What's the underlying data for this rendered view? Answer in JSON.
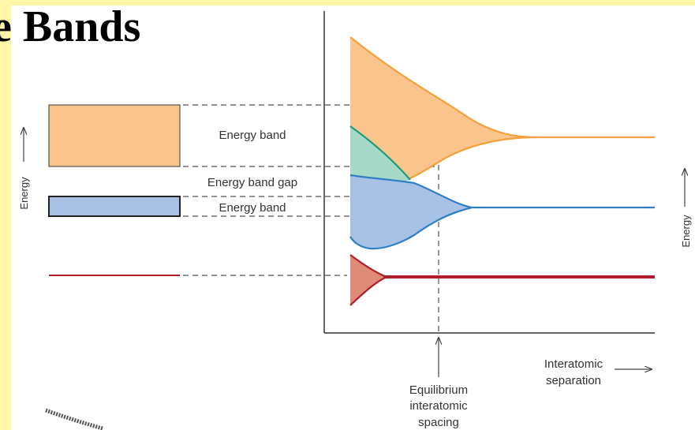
{
  "title": "e Bands",
  "labels": {
    "band_upper": "Energy band",
    "band_gap": "Energy band gap",
    "band_lower": "Energy band",
    "energy_left": "Energy",
    "energy_right": "Energy",
    "equilibrium_line1": "Equilibrium",
    "equilibrium_line2": "interatomic",
    "equilibrium_line3": "spacing",
    "separation_line1": "Interatomic",
    "separation_line2": "separation"
  },
  "colors": {
    "upper_band": "#f9c58c",
    "upper_band_edge": "#f2a13e",
    "lower_band": "#a8c2e6",
    "lower_band_edge": "#2e7fc4",
    "teal_band": "#a7d9c8",
    "teal_edge": "#1f9a76",
    "core_band": "#e08a78",
    "core_edge": "#b01e2c",
    "slide_background": "#fff6a8"
  }
}
